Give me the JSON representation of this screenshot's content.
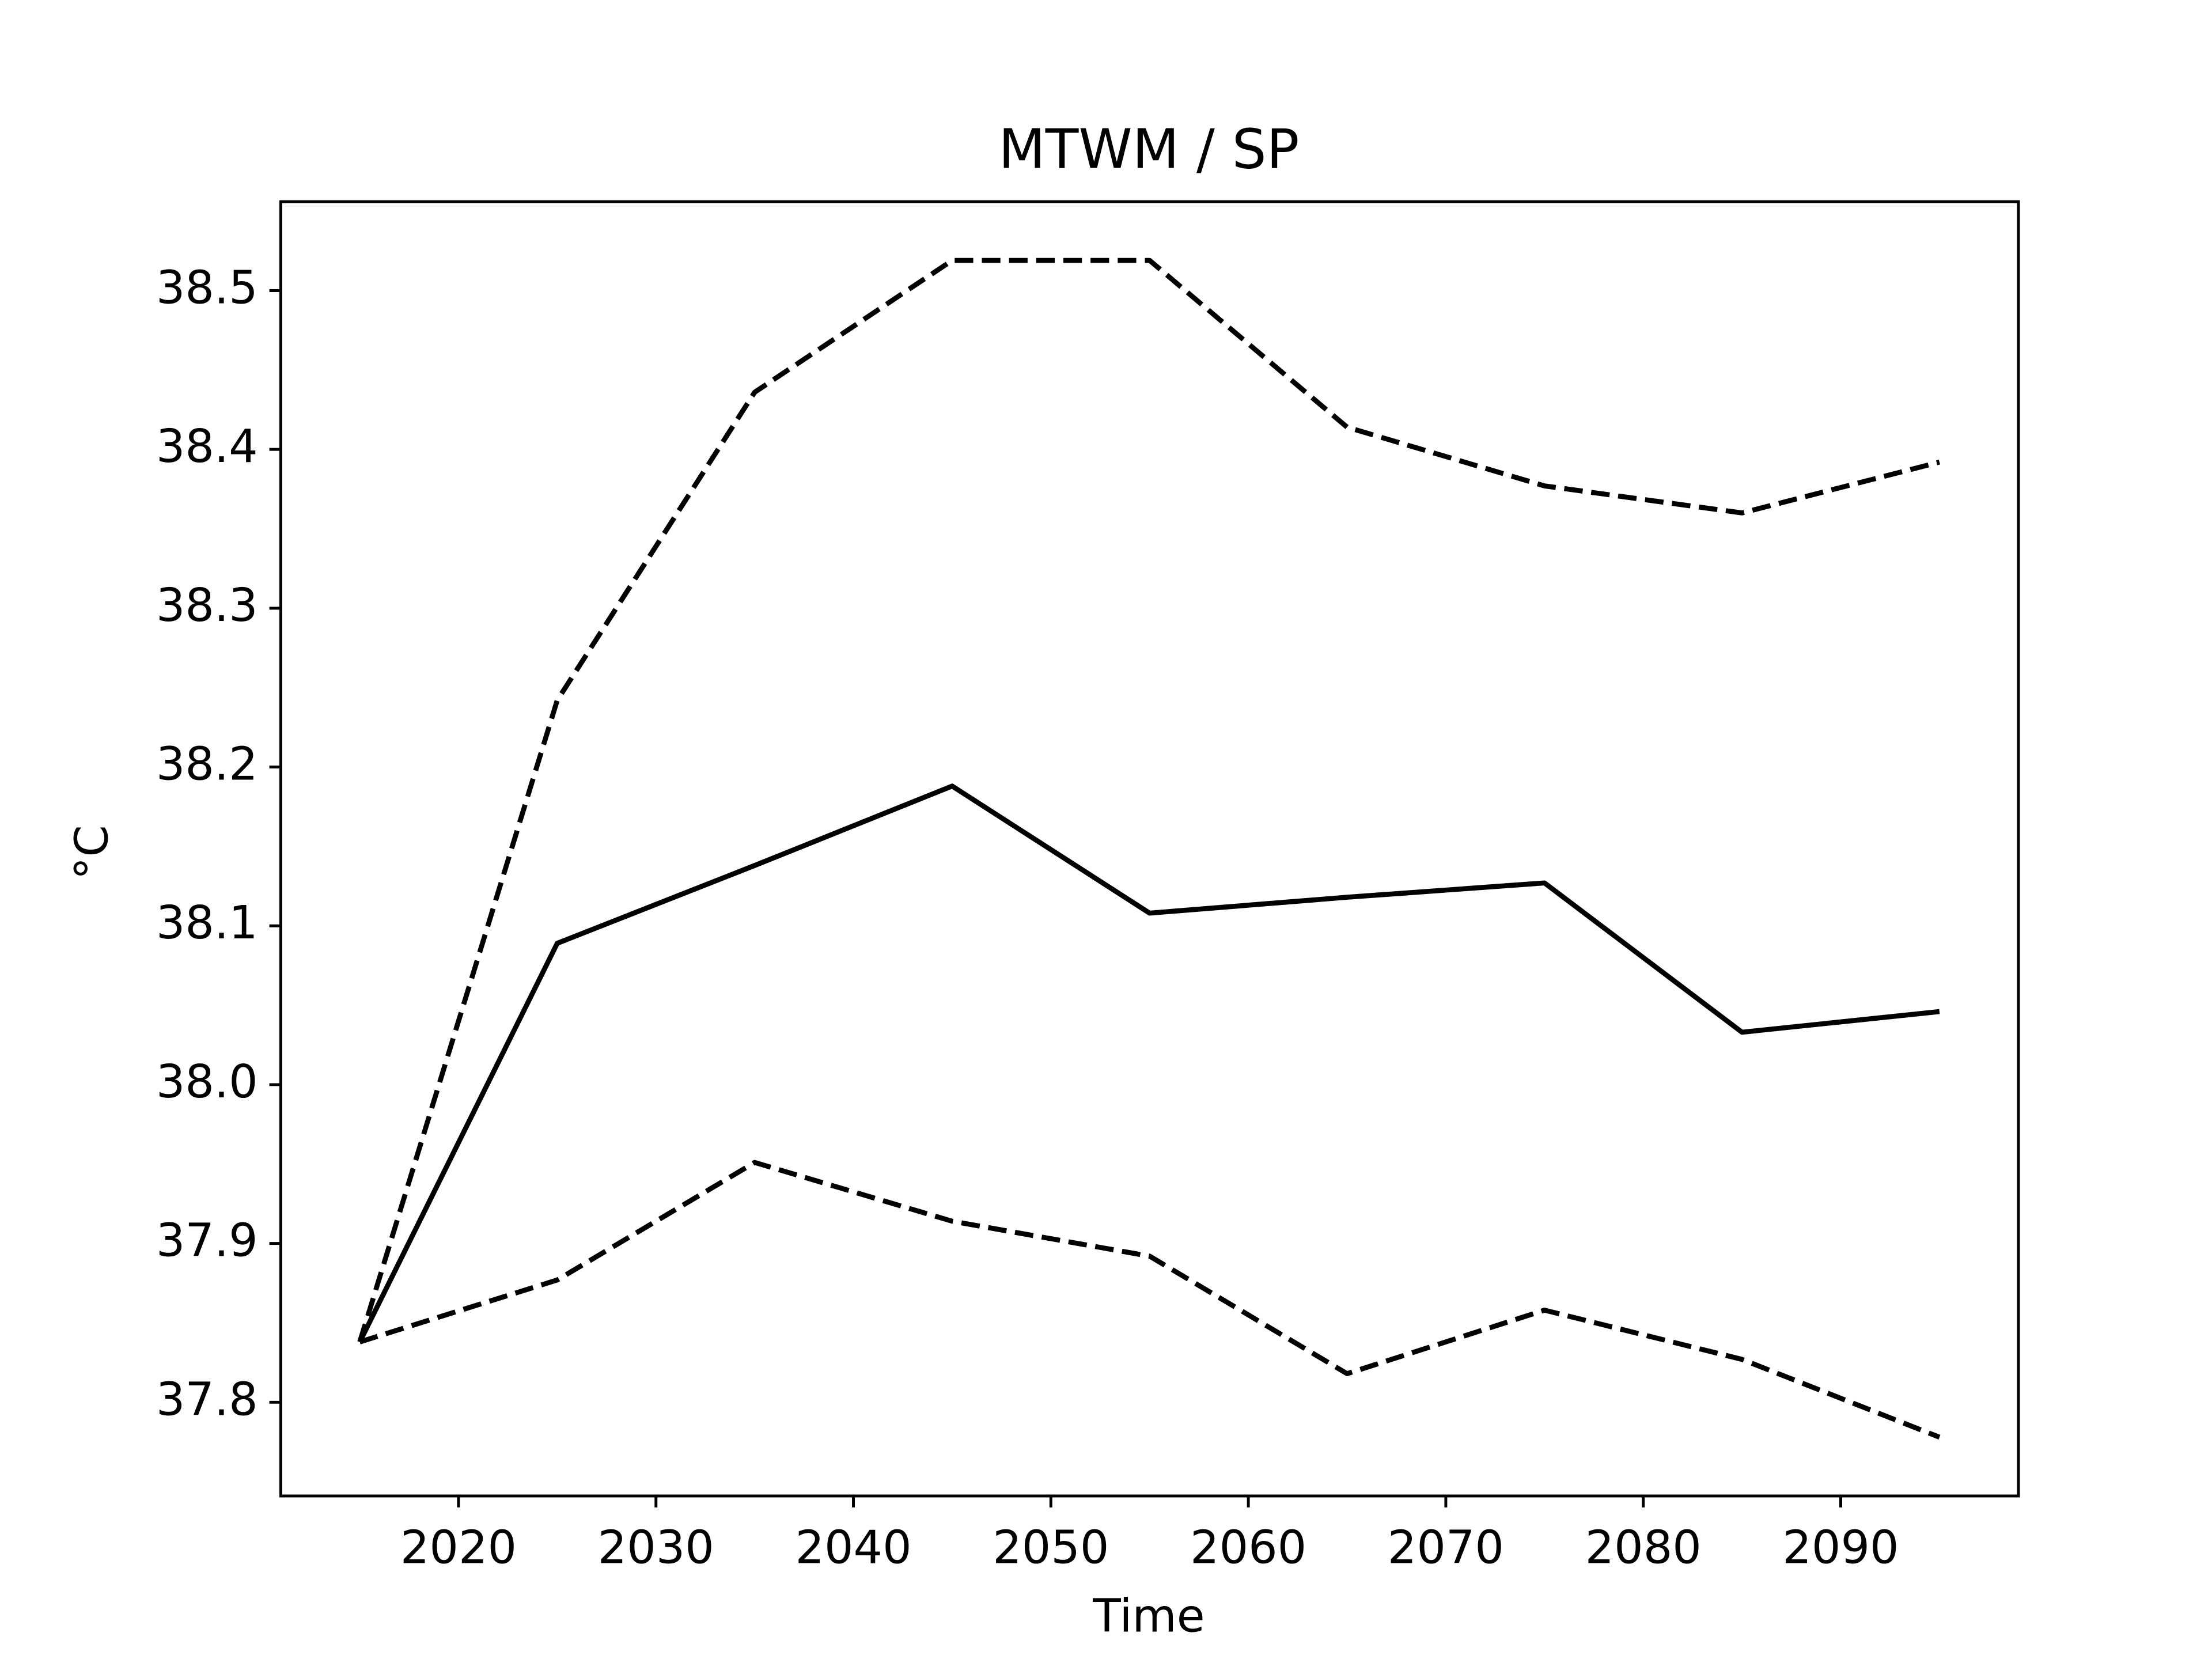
{
  "chart_data": {
    "type": "line",
    "title": "MTWM / SP",
    "xlabel": "Time",
    "ylabel": "°C",
    "x": [
      2015,
      2025,
      2035,
      2045,
      2055,
      2065,
      2075,
      2085,
      2095
    ],
    "series": [
      {
        "color": "#000000",
        "dashed": false,
        "values": [
          37.838,
          38.089,
          38.138,
          38.188,
          38.108,
          38.118,
          38.127,
          38.033,
          38.046
        ]
      },
      {
        "color": "#000000",
        "dashed": true,
        "values": [
          37.838,
          38.242,
          38.436,
          38.519,
          38.519,
          38.414,
          38.377,
          38.36,
          38.392
        ]
      },
      {
        "color": "#000000",
        "dashed": true,
        "values": [
          37.838,
          37.877,
          37.951,
          37.914,
          37.892,
          37.818,
          37.858,
          37.827,
          37.778
        ]
      }
    ],
    "xlim": [
      2011,
      2099
    ],
    "ylim": [
      37.741,
      38.556
    ],
    "xticks": [
      2020,
      2030,
      2040,
      2050,
      2060,
      2070,
      2080,
      2090
    ],
    "yticks": [
      37.8,
      37.9,
      {
        "value": 38,
        "label": "38.0"
      },
      38.1,
      38.2,
      38.3,
      38.4,
      38.5
    ],
    "grid": false
  }
}
